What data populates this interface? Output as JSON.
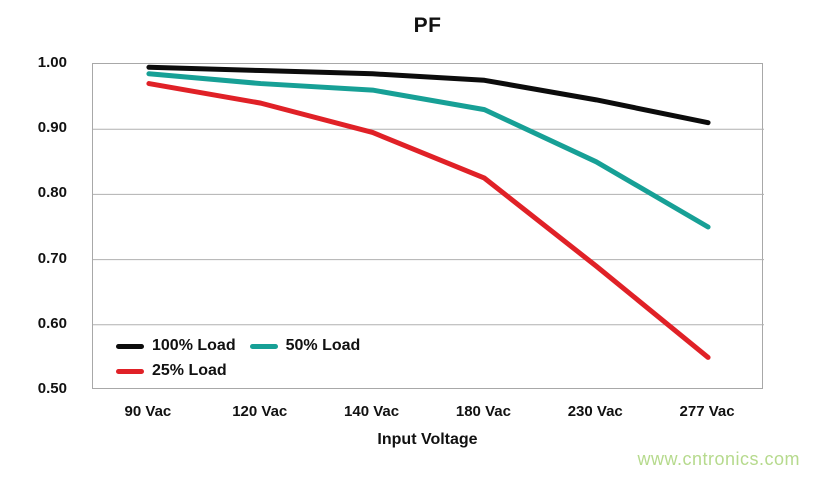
{
  "title": "PF",
  "watermark": "www.cntronics.com",
  "chart_data": {
    "type": "line",
    "title": "PF",
    "xlabel": "Input Voltage",
    "ylabel": "",
    "categories": [
      "90 Vac",
      "120 Vac",
      "140 Vac",
      "180 Vac",
      "230 Vac",
      "277 Vac"
    ],
    "series": [
      {
        "name": "100% Load",
        "color": "#0c0c0c",
        "values": [
          0.995,
          0.99,
          0.985,
          0.975,
          0.945,
          0.91
        ]
      },
      {
        "name": "50% Load",
        "color": "#17a096",
        "values": [
          0.985,
          0.97,
          0.96,
          0.93,
          0.85,
          0.75
        ]
      },
      {
        "name": "25% Load",
        "color": "#e02127",
        "values": [
          0.97,
          0.94,
          0.895,
          0.825,
          0.69,
          0.55
        ]
      }
    ],
    "ylim": [
      0.5,
      1.0
    ],
    "ytick_step": 0.1,
    "yticks": [
      "1.00",
      "0.90",
      "0.80",
      "0.70",
      "0.60",
      "0.50"
    ],
    "grid": true,
    "legend_position": "bottom-left-inside"
  },
  "colors": {
    "gridline": "#b0b0b0",
    "plot_border": "#a8a8a8",
    "text": "#111111",
    "watermark": "#b6da8d",
    "background": "#ffffff"
  }
}
